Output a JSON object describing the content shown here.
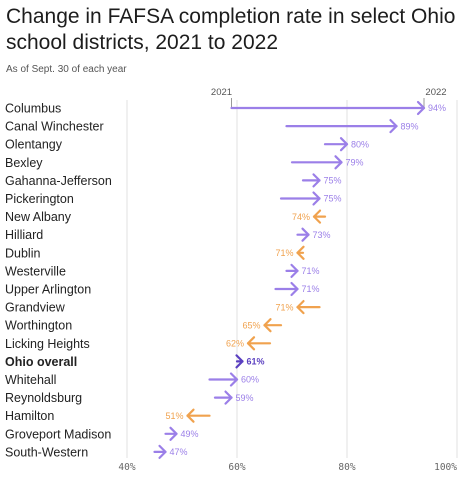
{
  "title": "Change in FAFSA completion rate in select Ohio school districts, 2021 to 2022",
  "subtitle": "As of Sept. 30 of each year",
  "colors": {
    "increase": "#9b7fe8",
    "decrease": "#f0a24e",
    "overall": "#5a3fc0",
    "grid": "#e2e2e2"
  },
  "chart_data": {
    "type": "arrow-dot",
    "title": "Change in FAFSA completion rate in select Ohio school districts, 2021 to 2022",
    "subtitle": "As of Sept. 30 of each year",
    "series_labels": [
      "2021",
      "2022"
    ],
    "xlim": [
      40,
      100
    ],
    "xticks": [
      "40%",
      "60%",
      "80%",
      "100%"
    ],
    "xtick_values": [
      40,
      60,
      80,
      100
    ],
    "grid": true,
    "rows": [
      {
        "name": "Columbus",
        "v2021": 59,
        "v2022": 94,
        "label": "94%"
      },
      {
        "name": "Canal Winchester",
        "v2021": 69,
        "v2022": 89,
        "label": "89%"
      },
      {
        "name": "Olentangy",
        "v2021": 76,
        "v2022": 80,
        "label": "80%"
      },
      {
        "name": "Bexley",
        "v2021": 70,
        "v2022": 79,
        "label": "79%"
      },
      {
        "name": "Gahanna-Jefferson",
        "v2021": 72,
        "v2022": 75,
        "label": "75%"
      },
      {
        "name": "Pickerington",
        "v2021": 68,
        "v2022": 75,
        "label": "75%"
      },
      {
        "name": "New Albany",
        "v2021": 76,
        "v2022": 74,
        "label": "74%"
      },
      {
        "name": "Hilliard",
        "v2021": 71,
        "v2022": 73,
        "label": "73%"
      },
      {
        "name": "Dublin",
        "v2021": 72,
        "v2022": 71,
        "label": "71%"
      },
      {
        "name": "Westerville",
        "v2021": 69,
        "v2022": 71,
        "label": "71%"
      },
      {
        "name": "Upper Arlington",
        "v2021": 67,
        "v2022": 71,
        "label": "71%"
      },
      {
        "name": "Grandview",
        "v2021": 75,
        "v2022": 71,
        "label": "71%"
      },
      {
        "name": "Worthington",
        "v2021": 68,
        "v2022": 65,
        "label": "65%"
      },
      {
        "name": "Licking Heights",
        "v2021": 66,
        "v2022": 62,
        "label": "62%"
      },
      {
        "name": "Ohio overall",
        "v2021": 60,
        "v2022": 61,
        "label": "61%",
        "bold": true
      },
      {
        "name": "Whitehall",
        "v2021": 55,
        "v2022": 60,
        "label": "60%"
      },
      {
        "name": "Reynoldsburg",
        "v2021": 56,
        "v2022": 59,
        "label": "59%"
      },
      {
        "name": "Hamilton",
        "v2021": 55,
        "v2022": 51,
        "label": "51%"
      },
      {
        "name": "Groveport Madison",
        "v2021": 47,
        "v2022": 49,
        "label": "49%"
      },
      {
        "name": "South-Western",
        "v2021": 45,
        "v2022": 47,
        "label": "47%"
      }
    ]
  }
}
